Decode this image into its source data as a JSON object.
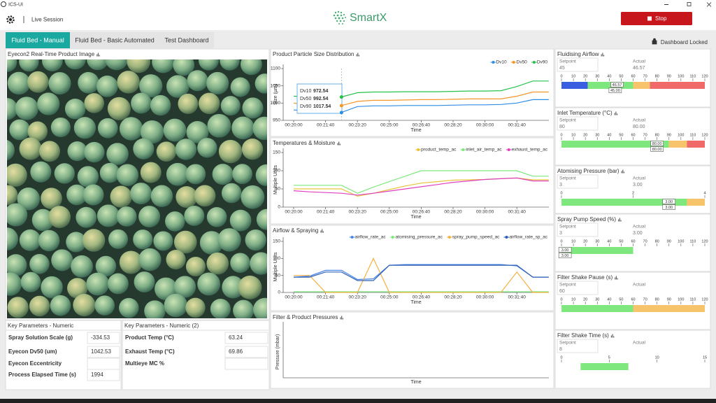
{
  "window": {
    "title": "ICS-UI"
  },
  "header": {
    "session": "Live Session",
    "logo": "SmartX",
    "stop_button": "Stop"
  },
  "tabs": [
    "Fluid Bed - Manual",
    "Fluid Bed - Basic Automated",
    "Test Dashboard"
  ],
  "active_tab": 0,
  "lock_status": "Dashboard Locked",
  "image_panel": {
    "title": "Eyecon2 Real-Time Product Image"
  },
  "tables": [
    {
      "title": "Key Parameters - Numeric",
      "rows": [
        [
          "Spray Solution Scale (g)",
          -334.53
        ],
        [
          "Eyecon Dv50 (um)",
          1042.53
        ],
        [
          "Eyecon Eccentricity"
        ],
        [
          "Process Elapsed Time (s)",
          1994
        ]
      ]
    },
    {
      "title": "Key Parameters - Numeric (2)",
      "rows": [
        [
          "Product Temp (°C)",
          63.24
        ],
        [
          "Exhaust Temp (°C)",
          69.86
        ],
        [
          "Multieye MC %"
        ]
      ]
    }
  ],
  "charts": [
    {
      "type": "line",
      "title": "Product Particle Size Distribution",
      "x_label": "Time",
      "y_label": "Size (µm)",
      "categories": [
        "00:20:00",
        null,
        "00:21:40",
        null,
        "00:23:20",
        null,
        "00:25:00",
        null,
        "00:26:40",
        null,
        "00:28:20",
        null,
        "00:30:00",
        null,
        "00:31:40",
        null,
        null
      ],
      "ylim": [
        950,
        1100
      ],
      "yticks": [
        950,
        1000,
        1050,
        1100
      ],
      "legend": "top-right",
      "series": [
        {
          "name": "Dv10",
          "color": "#2f8de4",
          "values": [
            980,
            978,
            975,
            973,
            990,
            992,
            992,
            993,
            993,
            993,
            994,
            995,
            995,
            996,
            1000,
            1010,
            1010
          ]
        },
        {
          "name": "Dv50",
          "color": "#f5962a",
          "values": [
            1000,
            995,
            993,
            993,
            1005,
            1008,
            1008,
            1009,
            1010,
            1010,
            1011,
            1012,
            1012,
            1012,
            1020,
            1032,
            1032
          ]
        },
        {
          "name": "Dv90",
          "color": "#27c24c",
          "values": [
            1020,
            1018,
            1018,
            1018,
            1030,
            1032,
            1032,
            1033,
            1033,
            1033,
            1034,
            1035,
            1035,
            1036,
            1048,
            1064,
            1064
          ]
        }
      ],
      "tooltip": {
        "index": 3,
        "rows": [
          {
            "name": "Dv10",
            "value": 972.54
          },
          {
            "name": "Dv50",
            "value": 992.54
          },
          {
            "name": "Dv90",
            "value": 1017.54
          }
        ]
      }
    },
    {
      "type": "line",
      "title": "Temperatures & Moisture",
      "x_label": "Time",
      "y_label": "Multiple Units",
      "categories": [
        "00:20:00",
        null,
        "00:21:40",
        null,
        "00:23:20",
        null,
        "00:25:00",
        null,
        "00:26:40",
        null,
        "00:28:20",
        null,
        "00:30:00",
        null,
        "00:31:40",
        null,
        null
      ],
      "ylim": [
        0,
        150
      ],
      "yticks": [
        0,
        50,
        100,
        150
      ],
      "legend": "top-right",
      "series": [
        {
          "name": "product_temp_ac",
          "color": "#e8c33a",
          "values": [
            50,
            50,
            50,
            50,
            30,
            38,
            48,
            58,
            66,
            70,
            74,
            75,
            76,
            78,
            80,
            75,
            75
          ]
        },
        {
          "name": "inlet_air_temp_ac",
          "color": "#7ee87e",
          "values": [
            60,
            60,
            60,
            60,
            38,
            55,
            70,
            85,
            100,
            100,
            100,
            100,
            100,
            100,
            100,
            85,
            85
          ]
        },
        {
          "name": "exhaust_temp_ac",
          "color": "#e040c0",
          "values": [
            45,
            42,
            40,
            38,
            33,
            38,
            44,
            50,
            56,
            62,
            68,
            72,
            76,
            78,
            80,
            72,
            72
          ]
        }
      ]
    },
    {
      "type": "line",
      "title": "Airflow & Spraying",
      "x_label": "Time",
      "y_label": "Multiple Units",
      "categories": [
        "00:20:00",
        null,
        "00:21:40",
        null,
        "00:23:20",
        null,
        "00:25:00",
        null,
        "00:26:40",
        null,
        "00:28:20",
        null,
        "00:30:00",
        null,
        "00:31:40",
        null,
        null
      ],
      "ylim": [
        0,
        150
      ],
      "yticks": [
        0,
        50,
        100,
        150
      ],
      "legend": "top-right",
      "series": [
        {
          "name": "airflow_rate_ac",
          "color": "#4a86e8",
          "values": [
            45,
            48,
            65,
            65,
            38,
            40,
            80,
            82,
            82,
            82,
            82,
            82,
            82,
            82,
            78,
            45,
            45
          ]
        },
        {
          "name": "atomising_pressure_ac",
          "color": "#7ee87e",
          "values": [
            2,
            2,
            2,
            2,
            2,
            2,
            2,
            2,
            2,
            2,
            2,
            2,
            2,
            2,
            2,
            2,
            2
          ]
        },
        {
          "name": "spray_pump_speed_ac",
          "color": "#f5b041",
          "values": [
            50,
            50,
            0,
            0,
            0,
            100,
            0,
            0,
            0,
            0,
            0,
            0,
            0,
            0,
            60,
            0,
            0
          ]
        },
        {
          "name": "airflow_rate_sp_ac",
          "color": "#2f5fb5",
          "values": [
            45,
            45,
            60,
            60,
            35,
            35,
            80,
            80,
            80,
            80,
            80,
            80,
            80,
            80,
            80,
            45,
            45
          ]
        }
      ]
    },
    {
      "type": "line",
      "title": "Filter & Product Pressures",
      "x_label": "Time",
      "y_label": "Pressure (mbar)",
      "series": []
    }
  ],
  "gauge_labels": {
    "setpoint": "Setpoint",
    "actual": "Actual"
  },
  "gauges": [
    {
      "title": "Fluidising Airflow",
      "setpoint": 45,
      "actual": 46.57,
      "lim": [
        0,
        120
      ],
      "ticks": [
        0,
        10,
        20,
        30,
        40,
        50,
        60,
        70,
        80,
        90,
        100,
        110,
        120
      ],
      "segments": [
        {
          "from": 0,
          "to": 22,
          "color": "#3b5ee0"
        },
        {
          "from": 22,
          "to": 60,
          "color": "#7ee87e"
        },
        {
          "from": 60,
          "to": 74,
          "color": "#f7c46c"
        },
        {
          "from": 74,
          "to": 120,
          "color": "#f06a6a"
        }
      ],
      "markers": [
        46.57,
        {
          "value": 45,
          "label": "45.00"
        }
      ]
    },
    {
      "title": "Inlet Temperature (°C)",
      "setpoint": 80,
      "actual": {
        "value": 80,
        "label": "80.00"
      },
      "lim": [
        0,
        120
      ],
      "ticks": [
        0,
        10,
        20,
        30,
        40,
        50,
        60,
        70,
        80,
        90,
        100,
        110,
        120
      ],
      "segments": [
        {
          "from": 0,
          "to": 90,
          "color": "#7ee87e"
        },
        {
          "from": 90,
          "to": 105,
          "color": "#f7c46c"
        },
        {
          "from": 105,
          "to": 120,
          "color": "#f06a6a"
        }
      ],
      "markers": [
        {
          "value": 80,
          "label": "80.00"
        },
        {
          "value": 80,
          "label": "80.00"
        }
      ]
    },
    {
      "title": "Atomising Pressure (bar)",
      "setpoint": 3,
      "actual": {
        "value": 3,
        "label": "3.00"
      },
      "lim": [
        0,
        4
      ],
      "ticks": [
        0,
        2,
        4
      ],
      "segments": [
        {
          "from": 0,
          "to": 3.5,
          "color": "#7ee87e"
        },
        {
          "from": 3.5,
          "to": 4,
          "color": "#f7c46c"
        }
      ],
      "markers": [
        {
          "value": 3,
          "label": "3.00"
        },
        {
          "value": 3,
          "label": "3.00"
        }
      ]
    },
    {
      "title": "Spray Pump Speed (%)",
      "setpoint": 3,
      "actual": {
        "value": 3,
        "label": "3.00"
      },
      "lim": [
        0,
        120
      ],
      "ticks": [
        0,
        10,
        20,
        30,
        40,
        50,
        60,
        70,
        80,
        90,
        100,
        110,
        120
      ],
      "segments": [
        {
          "from": 0,
          "to": 60,
          "color": "#7ee87e"
        }
      ],
      "markers": [
        {
          "value": 3,
          "label": "3.00"
        },
        {
          "value": 3,
          "label": "3.00"
        }
      ]
    },
    {
      "title": "Filter Shake Pause (s)",
      "setpoint": 60,
      "lim": [
        0,
        120
      ],
      "ticks": [
        0,
        10,
        20,
        30,
        40,
        50,
        60,
        70,
        80,
        90,
        100,
        110,
        120
      ],
      "segments": [
        {
          "from": 0,
          "to": 60,
          "color": "#7ee87e"
        },
        {
          "from": 60,
          "to": 120,
          "color": "#f7c46c"
        }
      ]
    },
    {
      "title": "Filter Shake Time (s)",
      "setpoint": 8,
      "lim": [
        0,
        15
      ],
      "ticks": [
        0,
        5,
        10,
        15
      ],
      "segments": [
        {
          "from": 2,
          "to": 7,
          "color": "#7ee87e"
        }
      ]
    }
  ]
}
